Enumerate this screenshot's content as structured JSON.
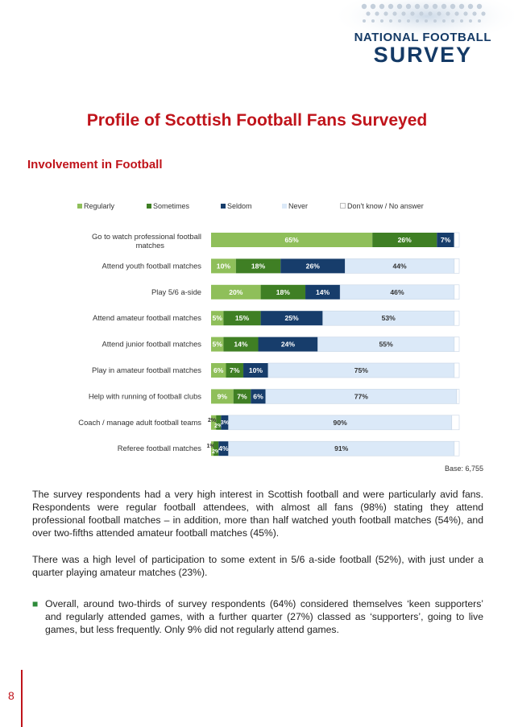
{
  "header": {
    "brand_line1": "NATIONAL FOOTBALL",
    "brand_line2": "SURVEY"
  },
  "page_title": "Profile of Scottish Football Fans Surveyed",
  "section_title": "Involvement in Football",
  "colors": {
    "regularly": "#8fbf5a",
    "sometimes": "#3f7f24",
    "seldom": "#173d6b",
    "never": "#dbe9f8",
    "dont_know": "#ffffff",
    "title_red": "#c0141b"
  },
  "chart_data": {
    "type": "bar",
    "orientation": "horizontal-stacked-100",
    "legend_position": "top",
    "categories": [
      "Go to watch professional football matches",
      "Attend youth football matches",
      "Play 5/6 a-side",
      "Attend amateur football matches",
      "Attend junior football matches",
      "Play in amateur football matches",
      "Help with running of football clubs",
      "Coach / manage adult football teams",
      "Referee football matches"
    ],
    "series": [
      {
        "name": "Regularly",
        "values": [
          65,
          10,
          20,
          5,
          5,
          6,
          9,
          2,
          1
        ]
      },
      {
        "name": "Sometimes",
        "values": [
          26,
          18,
          18,
          15,
          14,
          7,
          7,
          2,
          2
        ]
      },
      {
        "name": "Seldom",
        "values": [
          7,
          26,
          14,
          25,
          24,
          10,
          6,
          3,
          4
        ]
      },
      {
        "name": "Never",
        "values": [
          0,
          44,
          46,
          53,
          55,
          75,
          77,
          90,
          91
        ]
      },
      {
        "name": "Don't know / No answer",
        "values": [
          2,
          2,
          2,
          2,
          2,
          2,
          1,
          3,
          2
        ]
      }
    ],
    "labels": [
      [
        "65%",
        "26%",
        "7%",
        "",
        ""
      ],
      [
        "10%",
        "18%",
        "26%",
        "44%",
        ""
      ],
      [
        "20%",
        "18%",
        "14%",
        "46%",
        ""
      ],
      [
        "5%",
        "15%",
        "25%",
        "53%",
        ""
      ],
      [
        "5%",
        "14%",
        "24%",
        "55%",
        ""
      ],
      [
        "6%",
        "7%",
        "10%",
        "75%",
        ""
      ],
      [
        "9%",
        "7%",
        "6%",
        "77%",
        ""
      ],
      [
        "2%",
        "2%",
        "3%",
        "90%",
        ""
      ],
      [
        "1%",
        "2%",
        "4%",
        "91%",
        ""
      ]
    ],
    "xlim": [
      0,
      100
    ],
    "grid": false
  },
  "base_note": "Base: 6,755",
  "paragraphs": [
    "The survey respondents had a very high interest in Scottish football and were particularly avid fans. Respondents were regular football attendees, with almost all fans (98%) stating they attend professional football matches – in addition, more than half watched youth football matches (54%), and over two-fifths attended amateur football matches (45%).",
    "There was a high level of participation to some extent in 5/6 a-side football (52%), with just under a quarter playing amateur matches (23%).",
    "Overall, around two-thirds of survey respondents (64%) considered themselves ‘keen supporters’ and regularly attended games, with a further quarter (27%) classed as ‘supporters’, going to live games, but less frequently.  Only 9% did not regularly attend games."
  ],
  "page_number": "8"
}
